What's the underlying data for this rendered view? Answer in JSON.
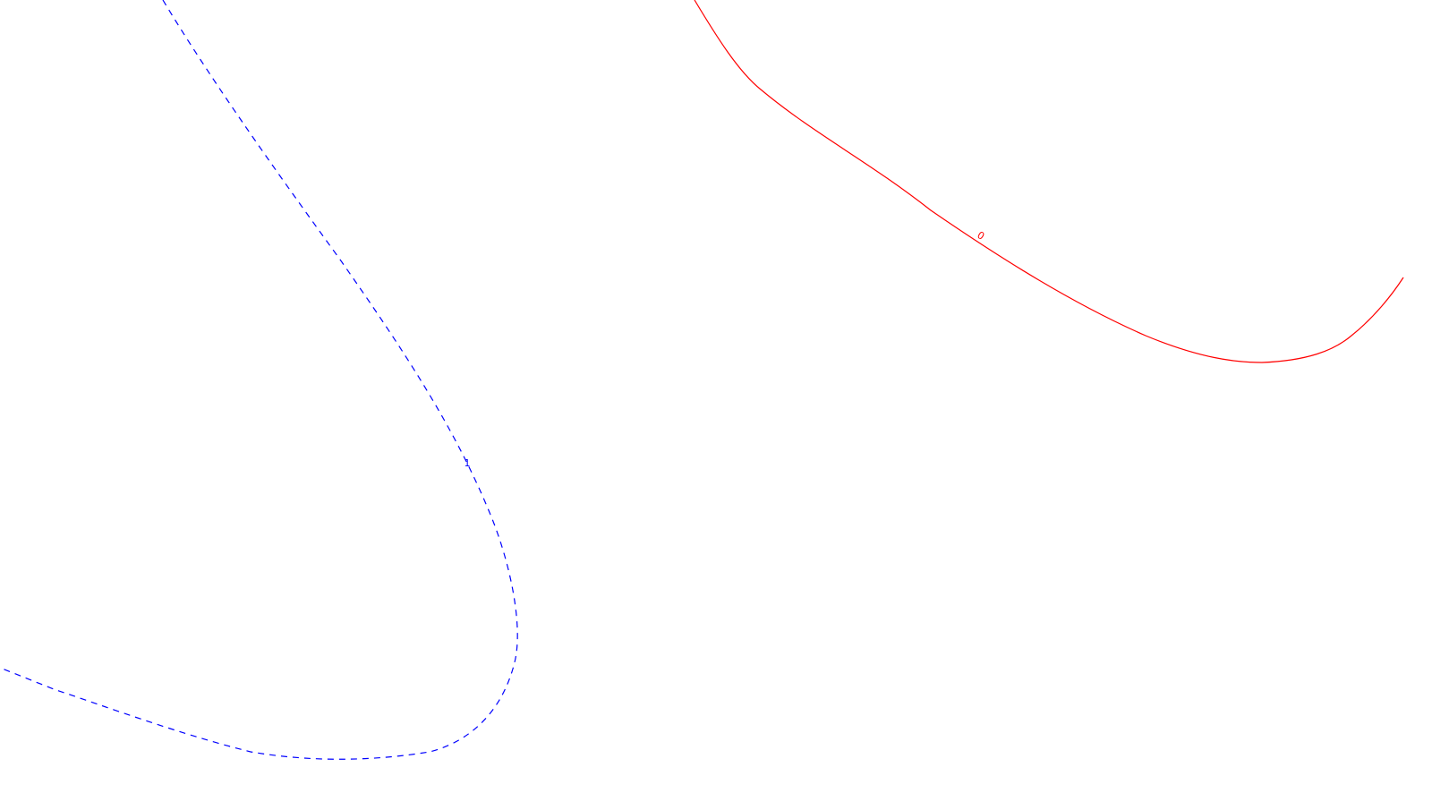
{
  "chart_data": {
    "type": "line",
    "title": "",
    "xlabel": "",
    "ylabel": "",
    "grid": false,
    "legend": "none",
    "series": [
      {
        "line_style": "solid",
        "color": "#ff0000",
        "contour_label": "0"
      },
      {
        "line_style": "dashed",
        "color": "#0000ff",
        "contour_label": "1"
      }
    ]
  }
}
